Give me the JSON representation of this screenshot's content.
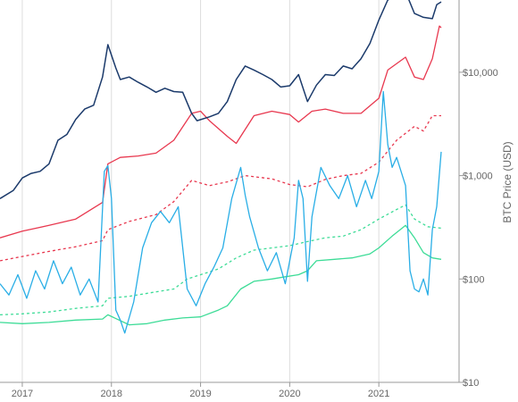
{
  "chart_data": {
    "type": "line",
    "title": "",
    "xlabel": "",
    "ylabel": "BTC Price (USD)",
    "y_scale": "log",
    "ylim": [
      10,
      50000
    ],
    "xlim": [
      2016.75,
      2021.9
    ],
    "x_tick_labels": [
      "2017",
      "2018",
      "2019",
      "2020",
      "2021"
    ],
    "x_ticks": [
      2017,
      2018,
      2019,
      2020,
      2021
    ],
    "y_tick_labels": [
      "$10",
      "$100",
      "$1,000",
      "$10,000"
    ],
    "y_ticks": [
      10,
      100,
      1000,
      10000
    ],
    "grid": "vertical",
    "legend": "none",
    "colors": {
      "price": "#1b3a6b",
      "upper": "#e8384f",
      "volatile": "#29aee6",
      "lower": "#3ddc97",
      "axis": "#999999",
      "grid": "#dddddd"
    },
    "series": [
      {
        "key": "price",
        "style": "solid",
        "points": [
          [
            2016.75,
            600
          ],
          [
            2016.9,
            720
          ],
          [
            2017.0,
            950
          ],
          [
            2017.1,
            1050
          ],
          [
            2017.2,
            1100
          ],
          [
            2017.3,
            1300
          ],
          [
            2017.4,
            2200
          ],
          [
            2017.5,
            2500
          ],
          [
            2017.6,
            3500
          ],
          [
            2017.7,
            4400
          ],
          [
            2017.8,
            4800
          ],
          [
            2017.9,
            9000
          ],
          [
            2017.96,
            18500
          ],
          [
            2018.05,
            11000
          ],
          [
            2018.1,
            8500
          ],
          [
            2018.2,
            9000
          ],
          [
            2018.3,
            8000
          ],
          [
            2018.4,
            7200
          ],
          [
            2018.5,
            6400
          ],
          [
            2018.6,
            7000
          ],
          [
            2018.7,
            6500
          ],
          [
            2018.8,
            6400
          ],
          [
            2018.9,
            4000
          ],
          [
            2018.96,
            3400
          ],
          [
            2019.1,
            3700
          ],
          [
            2019.2,
            4000
          ],
          [
            2019.3,
            5200
          ],
          [
            2019.4,
            8500
          ],
          [
            2019.5,
            11500
          ],
          [
            2019.6,
            10500
          ],
          [
            2019.7,
            9500
          ],
          [
            2019.8,
            8500
          ],
          [
            2019.9,
            7200
          ],
          [
            2020.0,
            7400
          ],
          [
            2020.1,
            9500
          ],
          [
            2020.2,
            5200
          ],
          [
            2020.3,
            7500
          ],
          [
            2020.4,
            9500
          ],
          [
            2020.5,
            9300
          ],
          [
            2020.6,
            11500
          ],
          [
            2020.7,
            10800
          ],
          [
            2020.8,
            13500
          ],
          [
            2020.9,
            19000
          ],
          [
            2021.0,
            32000
          ],
          [
            2021.1,
            50000
          ],
          [
            2021.3,
            60000
          ],
          [
            2021.4,
            37000
          ],
          [
            2021.5,
            34000
          ],
          [
            2021.6,
            33000
          ],
          [
            2021.65,
            45000
          ],
          [
            2021.7,
            48000
          ]
        ]
      },
      {
        "key": "upper",
        "style": "solid",
        "points": [
          [
            2016.75,
            250
          ],
          [
            2017.0,
            290
          ],
          [
            2017.3,
            330
          ],
          [
            2017.6,
            380
          ],
          [
            2017.9,
            550
          ],
          [
            2017.96,
            1300
          ],
          [
            2018.1,
            1500
          ],
          [
            2018.3,
            1550
          ],
          [
            2018.5,
            1650
          ],
          [
            2018.7,
            2200
          ],
          [
            2018.9,
            4000
          ],
          [
            2019.0,
            4200
          ],
          [
            2019.1,
            3400
          ],
          [
            2019.3,
            2400
          ],
          [
            2019.4,
            2050
          ],
          [
            2019.6,
            3800
          ],
          [
            2019.8,
            4200
          ],
          [
            2020.0,
            3900
          ],
          [
            2020.1,
            3300
          ],
          [
            2020.25,
            4200
          ],
          [
            2020.4,
            4400
          ],
          [
            2020.6,
            4000
          ],
          [
            2020.8,
            4000
          ],
          [
            2021.0,
            5600
          ],
          [
            2021.1,
            10500
          ],
          [
            2021.3,
            14000
          ],
          [
            2021.4,
            9000
          ],
          [
            2021.5,
            8500
          ],
          [
            2021.6,
            13500
          ],
          [
            2021.68,
            28000
          ],
          [
            2021.7,
            27000
          ]
        ]
      },
      {
        "key": "upper_dashed",
        "style": "dashed",
        "points": [
          [
            2016.75,
            150
          ],
          [
            2017.0,
            165
          ],
          [
            2017.3,
            185
          ],
          [
            2017.6,
            205
          ],
          [
            2017.9,
            235
          ],
          [
            2017.96,
            300
          ],
          [
            2018.2,
            360
          ],
          [
            2018.5,
            420
          ],
          [
            2018.7,
            560
          ],
          [
            2018.9,
            900
          ],
          [
            2019.1,
            800
          ],
          [
            2019.3,
            870
          ],
          [
            2019.5,
            1000
          ],
          [
            2019.8,
            930
          ],
          [
            2020.0,
            820
          ],
          [
            2020.2,
            780
          ],
          [
            2020.4,
            920
          ],
          [
            2020.6,
            1000
          ],
          [
            2020.8,
            1050
          ],
          [
            2021.0,
            1350
          ],
          [
            2021.2,
            2200
          ],
          [
            2021.4,
            3000
          ],
          [
            2021.5,
            2700
          ],
          [
            2021.6,
            3800
          ],
          [
            2021.7,
            3800
          ]
        ]
      },
      {
        "key": "volatile",
        "style": "solid",
        "points": [
          [
            2016.75,
            90
          ],
          [
            2016.85,
            70
          ],
          [
            2016.95,
            110
          ],
          [
            2017.05,
            65
          ],
          [
            2017.15,
            120
          ],
          [
            2017.25,
            80
          ],
          [
            2017.35,
            150
          ],
          [
            2017.45,
            90
          ],
          [
            2017.55,
            130
          ],
          [
            2017.65,
            70
          ],
          [
            2017.75,
            100
          ],
          [
            2017.85,
            60
          ],
          [
            2017.92,
            1100
          ],
          [
            2017.96,
            1250
          ],
          [
            2018.0,
            600
          ],
          [
            2018.05,
            50
          ],
          [
            2018.1,
            40
          ],
          [
            2018.15,
            30
          ],
          [
            2018.25,
            60
          ],
          [
            2018.35,
            200
          ],
          [
            2018.45,
            350
          ],
          [
            2018.55,
            450
          ],
          [
            2018.65,
            350
          ],
          [
            2018.75,
            500
          ],
          [
            2018.85,
            80
          ],
          [
            2018.95,
            55
          ],
          [
            2019.05,
            90
          ],
          [
            2019.15,
            130
          ],
          [
            2019.25,
            200
          ],
          [
            2019.35,
            600
          ],
          [
            2019.45,
            1200
          ],
          [
            2019.5,
            650
          ],
          [
            2019.55,
            400
          ],
          [
            2019.65,
            200
          ],
          [
            2019.75,
            120
          ],
          [
            2019.85,
            180
          ],
          [
            2019.95,
            90
          ],
          [
            2020.05,
            250
          ],
          [
            2020.1,
            900
          ],
          [
            2020.15,
            600
          ],
          [
            2020.2,
            95
          ],
          [
            2020.25,
            400
          ],
          [
            2020.35,
            1200
          ],
          [
            2020.45,
            800
          ],
          [
            2020.55,
            600
          ],
          [
            2020.65,
            1000
          ],
          [
            2020.75,
            500
          ],
          [
            2020.85,
            900
          ],
          [
            2020.92,
            600
          ],
          [
            2021.0,
            1100
          ],
          [
            2021.05,
            6500
          ],
          [
            2021.1,
            2000
          ],
          [
            2021.15,
            1200
          ],
          [
            2021.2,
            1500
          ],
          [
            2021.3,
            800
          ],
          [
            2021.35,
            120
          ],
          [
            2021.4,
            80
          ],
          [
            2021.45,
            75
          ],
          [
            2021.5,
            100
          ],
          [
            2021.55,
            70
          ],
          [
            2021.6,
            300
          ],
          [
            2021.65,
            500
          ],
          [
            2021.7,
            1700
          ]
        ]
      },
      {
        "key": "lower_dashed",
        "style": "dashed",
        "points": [
          [
            2016.75,
            45
          ],
          [
            2017.0,
            46
          ],
          [
            2017.3,
            48
          ],
          [
            2017.6,
            52
          ],
          [
            2017.9,
            55
          ],
          [
            2017.96,
            65
          ],
          [
            2018.2,
            68
          ],
          [
            2018.5,
            75
          ],
          [
            2018.7,
            80
          ],
          [
            2018.85,
            100
          ],
          [
            2019.0,
            110
          ],
          [
            2019.2,
            125
          ],
          [
            2019.4,
            160
          ],
          [
            2019.6,
            190
          ],
          [
            2019.8,
            200
          ],
          [
            2020.0,
            210
          ],
          [
            2020.2,
            230
          ],
          [
            2020.4,
            250
          ],
          [
            2020.6,
            260
          ],
          [
            2020.8,
            300
          ],
          [
            2021.0,
            380
          ],
          [
            2021.2,
            470
          ],
          [
            2021.3,
            520
          ],
          [
            2021.4,
            380
          ],
          [
            2021.55,
            320
          ],
          [
            2021.7,
            310
          ]
        ]
      },
      {
        "key": "lower",
        "style": "solid",
        "points": [
          [
            2016.75,
            38
          ],
          [
            2017.0,
            37
          ],
          [
            2017.3,
            38
          ],
          [
            2017.6,
            40
          ],
          [
            2017.9,
            41
          ],
          [
            2017.96,
            45
          ],
          [
            2018.2,
            36
          ],
          [
            2018.4,
            37
          ],
          [
            2018.6,
            40
          ],
          [
            2018.8,
            42
          ],
          [
            2019.0,
            43
          ],
          [
            2019.2,
            50
          ],
          [
            2019.3,
            55
          ],
          [
            2019.45,
            80
          ],
          [
            2019.6,
            95
          ],
          [
            2019.8,
            100
          ],
          [
            2019.95,
            105
          ],
          [
            2020.1,
            110
          ],
          [
            2020.2,
            120
          ],
          [
            2020.3,
            150
          ],
          [
            2020.5,
            155
          ],
          [
            2020.7,
            160
          ],
          [
            2020.9,
            175
          ],
          [
            2021.0,
            200
          ],
          [
            2021.15,
            260
          ],
          [
            2021.3,
            330
          ],
          [
            2021.4,
            250
          ],
          [
            2021.5,
            180
          ],
          [
            2021.6,
            160
          ],
          [
            2021.7,
            155
          ]
        ]
      }
    ]
  }
}
